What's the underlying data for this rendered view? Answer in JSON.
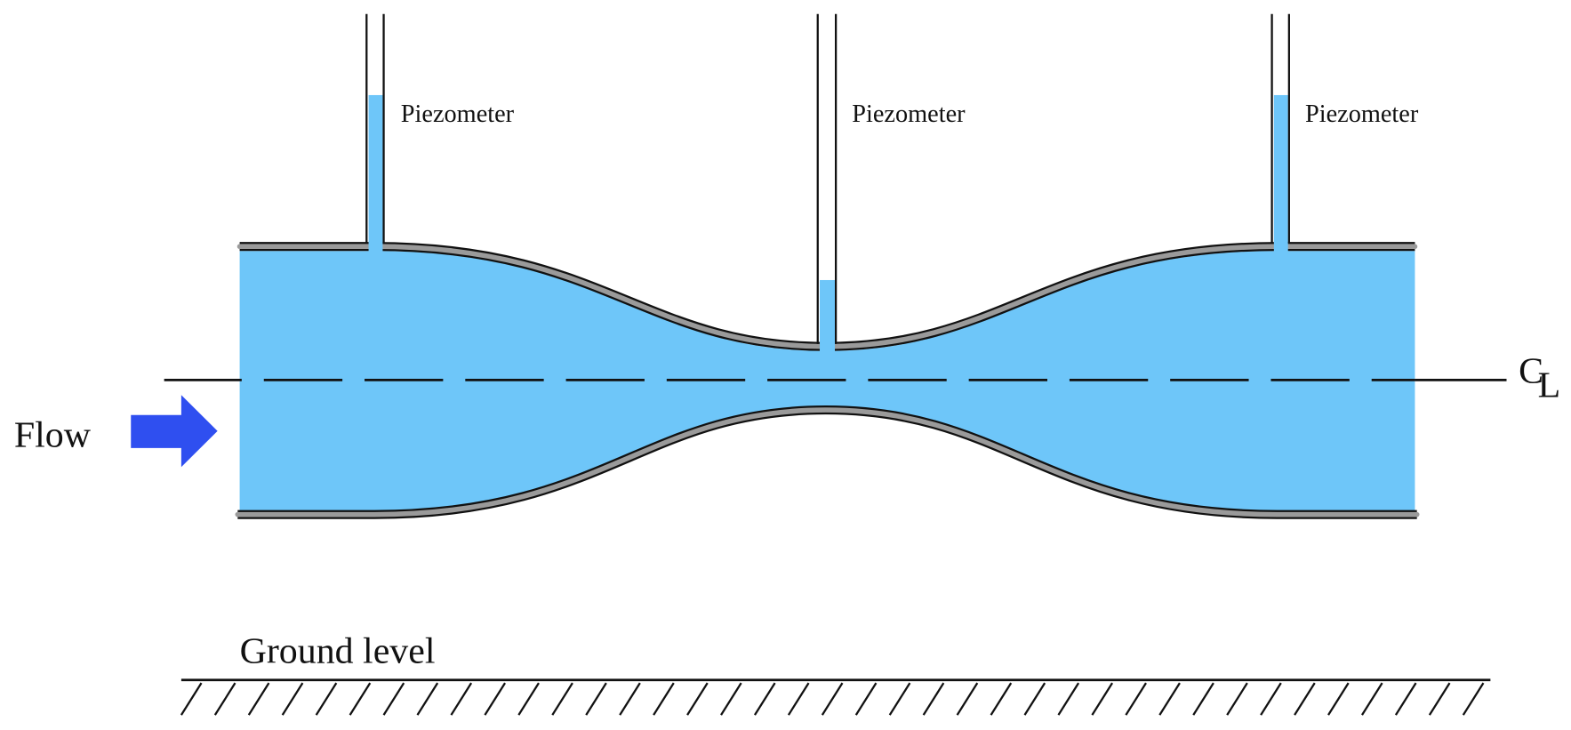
{
  "piezometers": [
    {
      "label": "Piezometer"
    },
    {
      "label": "Piezometer"
    },
    {
      "label": "Piezometer"
    }
  ],
  "flow_label": "Flow",
  "centerline": {
    "c": "C",
    "l": "L"
  },
  "ground_label": "Ground level"
}
